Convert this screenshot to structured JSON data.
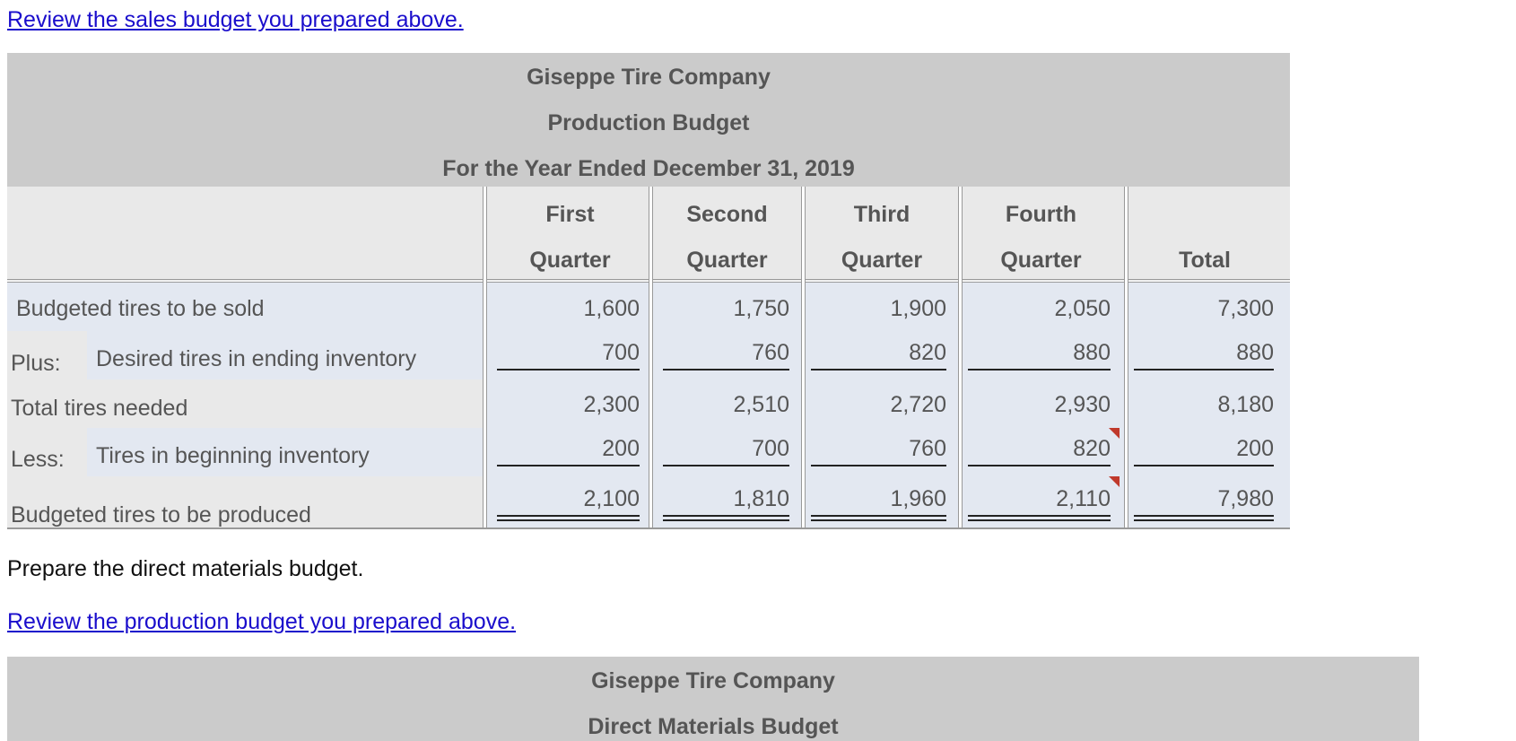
{
  "links": {
    "review_sales": "Review the sales budget you prepared above.",
    "review_production": "Review the production budget you prepared above."
  },
  "production_budget": {
    "company": "Giseppe Tire Company",
    "title": "Production Budget",
    "period": "For the Year Ended December 31, 2019",
    "columns": [
      {
        "line1": "First",
        "line2": "Quarter"
      },
      {
        "line1": "Second",
        "line2": "Quarter"
      },
      {
        "line1": "Third",
        "line2": "Quarter"
      },
      {
        "line1": "Fourth",
        "line2": "Quarter"
      },
      {
        "line1": "",
        "line2": "Total"
      }
    ],
    "rows": [
      {
        "prefix": "",
        "label": "Budgeted tires to be sold",
        "values": [
          "1,600",
          "1,750",
          "1,900",
          "2,050",
          "7,300"
        ]
      },
      {
        "prefix": "Plus:",
        "label": "Desired tires in ending inventory",
        "values": [
          "700",
          "760",
          "820",
          "880",
          "880"
        ]
      },
      {
        "prefix": "",
        "label": "Total tires needed",
        "values": [
          "2,300",
          "2,510",
          "2,720",
          "2,930",
          "8,180"
        ]
      },
      {
        "prefix": "Less:",
        "label": "Tires in beginning inventory",
        "values": [
          "200",
          "700",
          "760",
          "820",
          "200"
        ]
      },
      {
        "prefix": "",
        "label": "Budgeted tires to be produced",
        "values": [
          "2,100",
          "1,810",
          "1,960",
          "2,110",
          "7,980"
        ]
      }
    ]
  },
  "instruction": "Prepare the direct materials budget.",
  "direct_materials_budget": {
    "company": "Giseppe Tire Company",
    "title": "Direct Materials Budget"
  },
  "colors": {
    "link": "#1a0dcc",
    "header_bg": "#cbcbcb",
    "input_cell_bg": "#e3e8f1",
    "flag": "#c0392b"
  }
}
